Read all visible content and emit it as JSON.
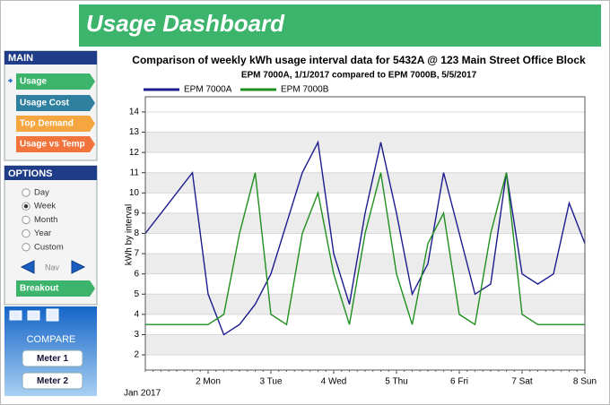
{
  "header": {
    "title": "Usage Dashboard"
  },
  "sidebar": {
    "main_title": "MAIN",
    "main_items": [
      "Usage",
      "Usage Cost",
      "Top Demand",
      "Usage vs Temp"
    ],
    "options_title": "OPTIONS",
    "periods": [
      "Day",
      "Week",
      "Month",
      "Year",
      "Custom"
    ],
    "selected_period": 1,
    "nav": "Nav",
    "breakout": "Breakout",
    "compare_title": "COMPARE",
    "meters": [
      "Meter 1",
      "Meter 2"
    ]
  },
  "chart_data": {
    "type": "line",
    "title": "Comparison of weekly kWh usage interval data for 5432A @ 123 Main Street Office Block",
    "subtitle": "EPM 7000A, 1/1/2017 compared to EPM 7000B, 5/5/2017",
    "y_label": "kWh by interval",
    "x_note": "Jan 2017",
    "x": [
      1,
      1.25,
      1.5,
      1.75,
      2,
      2.25,
      2.5,
      2.75,
      3,
      3.25,
      3.5,
      3.75,
      4,
      4.25,
      4.5,
      4.75,
      5,
      5.25,
      5.5,
      5.75,
      6,
      6.25,
      6.5,
      6.75,
      7,
      7.25,
      7.5,
      7.75,
      8
    ],
    "series": [
      {
        "name": "EPM 7000A",
        "color": "#1c1c8f",
        "values": [
          8,
          9,
          10,
          11,
          5,
          3,
          3.5,
          4.5,
          6,
          8.5,
          11,
          12.5,
          7,
          4.5,
          9,
          12.5,
          9,
          5,
          6.5,
          11,
          8,
          5,
          5.5,
          11,
          6,
          5.5,
          6,
          9.5,
          7.5
        ]
      },
      {
        "name": "EPM 7000B",
        "color": "#1f8f1f",
        "values": [
          3.5,
          3.5,
          3.5,
          3.5,
          3.5,
          4,
          8,
          11,
          4,
          3.5,
          8,
          10,
          6,
          3.5,
          8,
          11,
          6,
          3.5,
          7.5,
          9,
          4,
          3.5,
          8,
          11,
          4,
          3.5,
          3.5,
          3.5,
          3.5
        ]
      }
    ],
    "xlim": [
      1,
      8
    ],
    "xticks": [
      {
        "value": 2,
        "label": "2 Mon"
      },
      {
        "value": 3,
        "label": "3 Tue"
      },
      {
        "value": 4,
        "label": "4 Wed"
      },
      {
        "value": 5,
        "label": "5 Thu"
      },
      {
        "value": 6,
        "label": "6 Fri"
      },
      {
        "value": 7,
        "label": "7 Sat"
      },
      {
        "value": 8,
        "label": "8 Sun"
      }
    ],
    "ylim": [
      1.25,
      14.75
    ],
    "yticks": [
      2,
      3,
      4,
      5,
      6,
      7,
      8,
      9,
      10,
      11,
      12,
      13,
      14
    ],
    "grid": true,
    "legend": "top"
  }
}
